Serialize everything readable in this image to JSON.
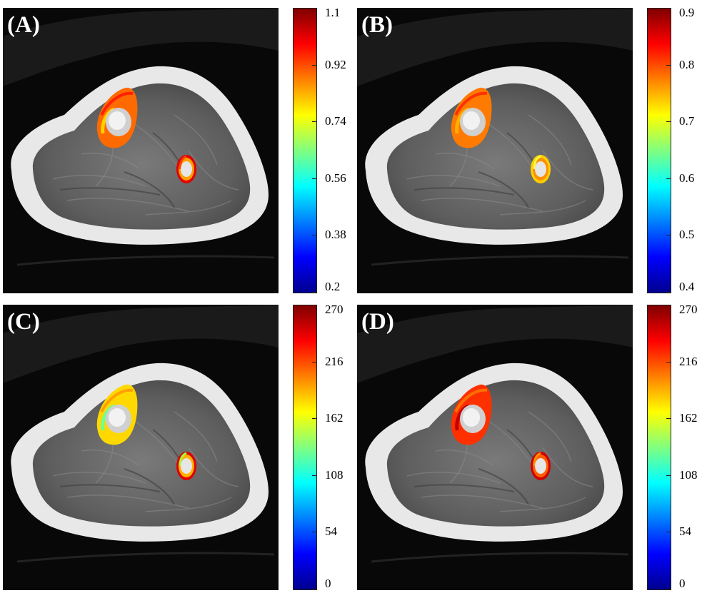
{
  "panels": [
    {
      "label": "(A)",
      "colorbar": {
        "ticks": [
          "1.1",
          "0.92",
          "0.74",
          "0.56",
          "0.38",
          "0.2"
        ]
      },
      "overlays": [
        {
          "region": "large-bone-ring",
          "outer_color": "#ff6a00",
          "inner_color": "#ff2000",
          "accent_color": "#ffd000"
        },
        {
          "region": "small-bone-ring",
          "outer_color": "#e00000",
          "inner_color": "#ffa000",
          "accent_color": "#ff4000"
        }
      ]
    },
    {
      "label": "(B)",
      "colorbar": {
        "ticks": [
          "0.9",
          "0.8",
          "0.7",
          "0.6",
          "0.5",
          "0.4"
        ]
      },
      "overlays": [
        {
          "region": "large-bone-ring",
          "outer_color": "#ff7a00",
          "inner_color": "#ff3000",
          "accent_color": "#ffb000"
        },
        {
          "region": "small-bone-ring",
          "outer_color": "#ffd000",
          "inner_color": "#ff9000",
          "accent_color": "#ffff40"
        }
      ]
    },
    {
      "label": "(C)",
      "colorbar": {
        "ticks": [
          "270",
          "216",
          "162",
          "108",
          "54",
          "0"
        ]
      },
      "overlays": [
        {
          "region": "large-bone-ring",
          "outer_color": "#ffd800",
          "inner_color": "#ffa000",
          "accent_color": "#70ff90"
        },
        {
          "region": "small-bone-ring",
          "outer_color": "#e00000",
          "inner_color": "#ffb000",
          "accent_color": "#a0ff40"
        }
      ]
    },
    {
      "label": "(D)",
      "colorbar": {
        "ticks": [
          "270",
          "216",
          "162",
          "108",
          "54",
          "0"
        ]
      },
      "overlays": [
        {
          "region": "large-bone-ring",
          "outer_color": "#ff3000",
          "inner_color": "#ff7000",
          "accent_color": "#c00000"
        },
        {
          "region": "small-bone-ring",
          "outer_color": "#d00000",
          "inner_color": "#ff6000",
          "accent_color": "#ff9000"
        }
      ]
    }
  ]
}
